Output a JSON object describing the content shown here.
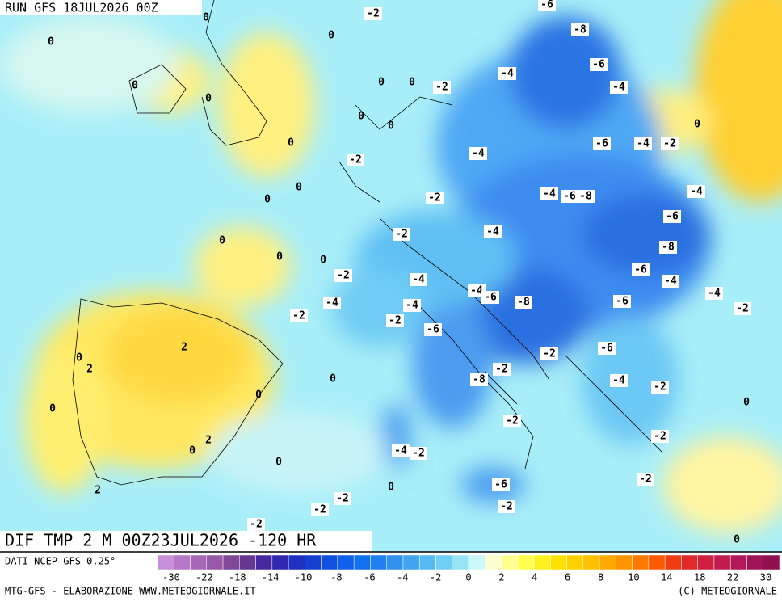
{
  "header": {
    "run": "RUN GFS 18JUL2026 00Z"
  },
  "map": {
    "title": "DIF TMP 2 M 00Z23JUL2026 -120 HR",
    "contour_labels": [
      0,
      0,
      -2,
      0,
      -6,
      -8,
      -6,
      -4,
      -4,
      0,
      0,
      0,
      0,
      -2,
      0,
      0,
      0,
      0,
      -6,
      -4,
      -2,
      -2,
      -4,
      0,
      0,
      -2,
      -4,
      -6,
      -8,
      -4,
      -6,
      -2,
      -4,
      0,
      -8,
      0,
      0,
      -2,
      -4,
      -6,
      -4,
      -4,
      -4,
      -6,
      -8,
      -4,
      -6,
      -4,
      -2,
      -2,
      -2,
      -6,
      2,
      -2,
      -6,
      0,
      2,
      -2,
      -8,
      0,
      -4,
      -2,
      0,
      0,
      0,
      -2,
      -2,
      2,
      0,
      -4,
      -2,
      0,
      -6,
      -2,
      0,
      2,
      -2,
      -2,
      -2,
      -2,
      0
    ]
  },
  "colorbar": {
    "source": "DATI NCEP GFS 0.25°",
    "ticks": [
      -30,
      -22,
      -18,
      -14,
      -10,
      -8,
      -6,
      -4,
      -2,
      0,
      2,
      4,
      6,
      8,
      10,
      14,
      18,
      22,
      30
    ],
    "colors": [
      "#c890d8",
      "#b878c8",
      "#a868b8",
      "#9858a8",
      "#804898",
      "#683890",
      "#4828a0",
      "#3028b0",
      "#2030c0",
      "#1840d0",
      "#1050e0",
      "#1060ec",
      "#1070f0",
      "#2080f0",
      "#3090f0",
      "#40a4f0",
      "#58b8f4",
      "#70d0f4",
      "#98e4f4",
      "#c8f8f8",
      "#ffffd0",
      "#ffff90",
      "#ffff50",
      "#fff020",
      "#ffe000",
      "#ffd000",
      "#ffc000",
      "#ffaa00",
      "#ff9400",
      "#ff7800",
      "#ff5a00",
      "#f03c10",
      "#e02828",
      "#d02040",
      "#c01c50",
      "#b01858",
      "#a01458",
      "#901050"
    ]
  },
  "footer": {
    "credit": "MTG-GFS - ELABORAZIONE WWW.METEOGIORNALE.IT",
    "copyright": "(C) METEOGIORNALE"
  }
}
